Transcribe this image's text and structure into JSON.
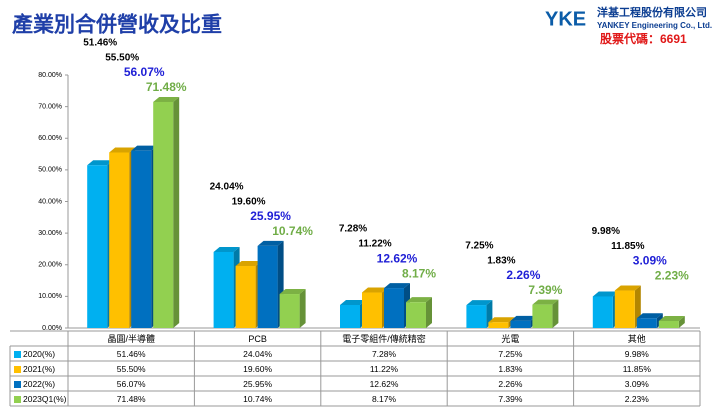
{
  "header": {
    "logo": "YKE",
    "company": "洋基工程股份有限公司",
    "company_en": "YANKEY Engineering Co., Ltd.",
    "stock_code": "股票代碼：6691"
  },
  "chart_data": {
    "type": "bar",
    "title": "產業別合併營收及比重",
    "categories": [
      "晶圓/半導體",
      "PCB",
      "電子零組件/傳統精密",
      "光電",
      "其他"
    ],
    "series": [
      {
        "name": "2020(%)",
        "color": "#00b0f0",
        "label_color": "#000000",
        "values": [
          51.46,
          24.04,
          7.28,
          7.25,
          9.98
        ],
        "value_labels": [
          "51.46%",
          "24.04%",
          "7.28%",
          "7.25%",
          "9.98%"
        ]
      },
      {
        "name": "2021(%)",
        "color": "#ffc000",
        "label_color": "#000000",
        "values": [
          55.5,
          19.6,
          11.22,
          1.83,
          11.85
        ],
        "value_labels": [
          "55.50%",
          "19.60%",
          "11.22%",
          "1.83%",
          "11.85%"
        ]
      },
      {
        "name": "2022(%)",
        "color": "#0070c0",
        "label_color": "#1f1fd6",
        "values": [
          56.07,
          25.95,
          12.62,
          2.26,
          3.09
        ],
        "value_labels": [
          "56.07%",
          "25.95%",
          "12.62%",
          "2.26%",
          "3.09%"
        ]
      },
      {
        "name": "2023Q1(%)",
        "color": "#92d050",
        "label_color": "#70ad47",
        "values": [
          71.48,
          10.74,
          8.17,
          7.39,
          2.23
        ],
        "value_labels": [
          "71.48%",
          "10.74%",
          "8.17%",
          "7.39%",
          "2.23%"
        ]
      }
    ],
    "ylim": [
      0,
      80
    ],
    "yticks": [
      {
        "value": 0,
        "label": "0.00%"
      },
      {
        "value": 10,
        "label": "10.00%"
      },
      {
        "value": 20,
        "label": "20.00%"
      },
      {
        "value": 30,
        "label": "30.00%"
      },
      {
        "value": 40,
        "label": "40.00%"
      },
      {
        "value": 50,
        "label": "50.00%"
      },
      {
        "value": 60,
        "label": "60.00%"
      },
      {
        "value": 70,
        "label": "70.00%"
      },
      {
        "value": 80,
        "label": "80.00%"
      }
    ],
    "grid": false
  }
}
